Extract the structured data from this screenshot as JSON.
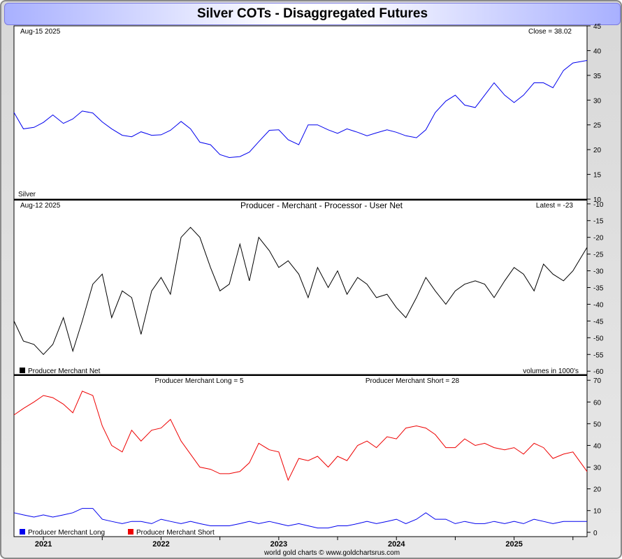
{
  "title": "Silver COTs - Disaggregated Futures",
  "footer": "world gold charts © www.goldchartsrus.com",
  "colors": {
    "price": "#0000ee",
    "net": "#000000",
    "long": "#0000ee",
    "short": "#ee0000",
    "frame_accent": "#a8b0ff"
  },
  "chart_data": [
    {
      "type": "line",
      "name": "price-panel",
      "top_left_text": "Aug-15  2025",
      "top_right_text": "Close = 38.02",
      "bottom_left_text": "Silver",
      "ylim": [
        10,
        45
      ],
      "yticks": [
        "45",
        "40",
        "35",
        "30",
        "25",
        "20",
        "15",
        "10"
      ],
      "x": [
        2020.75,
        2020.83,
        2020.92,
        2021.0,
        2021.08,
        2021.17,
        2021.25,
        2021.33,
        2021.42,
        2021.5,
        2021.58,
        2021.67,
        2021.75,
        2021.83,
        2021.92,
        2022.0,
        2022.08,
        2022.17,
        2022.25,
        2022.33,
        2022.42,
        2022.5,
        2022.58,
        2022.67,
        2022.75,
        2022.83,
        2022.92,
        2023.0,
        2023.08,
        2023.17,
        2023.25,
        2023.33,
        2023.42,
        2023.5,
        2023.58,
        2023.67,
        2023.75,
        2023.83,
        2023.92,
        2024.0,
        2024.08,
        2024.17,
        2024.25,
        2024.33,
        2024.42,
        2024.5,
        2024.58,
        2024.67,
        2024.75,
        2024.83,
        2024.92,
        2025.0,
        2025.08,
        2025.17,
        2025.25,
        2025.33,
        2025.42,
        2025.5,
        2025.62
      ],
      "series": [
        {
          "values": [
            27.5,
            24.2,
            24.5,
            25.5,
            27.0,
            25.3,
            26.2,
            27.8,
            27.4,
            25.6,
            24.2,
            22.9,
            22.6,
            23.6,
            22.9,
            23.0,
            23.9,
            25.7,
            24.2,
            21.5,
            21.0,
            19.0,
            18.4,
            18.6,
            19.5,
            21.6,
            23.9,
            24.0,
            22.0,
            21.0,
            25.0,
            25.0,
            24.0,
            23.3,
            24.2,
            23.5,
            22.8,
            23.4,
            24.0,
            23.5,
            22.8,
            22.4,
            24.0,
            27.5,
            29.8,
            31.0,
            29.0,
            28.5,
            31.0,
            33.5,
            31.0,
            29.5,
            31.0,
            33.5,
            33.5,
            32.5,
            36.0,
            37.5,
            38.02
          ]
        }
      ]
    },
    {
      "type": "line",
      "name": "net-panel",
      "title": "Producer - Merchant - Processor - User Net",
      "top_left_text": "Aug-12  2025",
      "top_right_text": "Latest = -23",
      "legend": "Producer Merchant Net",
      "note": "volumes in 1000's",
      "ylim": [
        -61,
        -9
      ],
      "yticks": [
        "-10",
        "-15",
        "-20",
        "-25",
        "-30",
        "-35",
        "-40",
        "-45",
        "-50",
        "-55",
        "-60"
      ],
      "x": [
        2020.75,
        2020.83,
        2020.92,
        2021.0,
        2021.08,
        2021.17,
        2021.25,
        2021.33,
        2021.42,
        2021.5,
        2021.58,
        2021.67,
        2021.75,
        2021.83,
        2021.92,
        2022.0,
        2022.08,
        2022.17,
        2022.25,
        2022.33,
        2022.42,
        2022.5,
        2022.58,
        2022.67,
        2022.75,
        2022.83,
        2022.92,
        2023.0,
        2023.08,
        2023.17,
        2023.25,
        2023.33,
        2023.42,
        2023.5,
        2023.58,
        2023.67,
        2023.75,
        2023.83,
        2023.92,
        2024.0,
        2024.08,
        2024.17,
        2024.25,
        2024.33,
        2024.42,
        2024.5,
        2024.58,
        2024.67,
        2024.75,
        2024.83,
        2024.92,
        2025.0,
        2025.08,
        2025.17,
        2025.25,
        2025.33,
        2025.42,
        2025.5,
        2025.62
      ],
      "series": [
        {
          "values": [
            -45,
            -51,
            -52,
            -55,
            -52,
            -44,
            -54,
            -45,
            -34,
            -31,
            -44,
            -36,
            -38,
            -49,
            -36,
            -32,
            -37,
            -20,
            -17,
            -20,
            -29,
            -36,
            -34,
            -22,
            -33,
            -20,
            -24,
            -29,
            -27,
            -31,
            -38,
            -29,
            -35,
            -30,
            -37,
            -32,
            -34,
            -38,
            -37,
            -41,
            -44,
            -38,
            -32,
            -36,
            -40,
            -36,
            -34,
            -33,
            -34,
            -38,
            -33,
            -29,
            -31,
            -36,
            -28,
            -31,
            -33,
            -30,
            -23
          ]
        }
      ]
    },
    {
      "type": "line",
      "name": "long-short-panel",
      "long_label": "Producer Merchant Long = 5",
      "short_label": "Producer Merchant Short = 28",
      "ylim": [
        -2,
        72
      ],
      "yticks": [
        "70",
        "60",
        "50",
        "40",
        "30",
        "20",
        "10",
        "0"
      ],
      "categories": [
        "2021",
        "2022",
        "2023",
        "2024",
        "2025"
      ],
      "x": [
        2020.75,
        2020.83,
        2020.92,
        2021.0,
        2021.08,
        2021.17,
        2021.25,
        2021.33,
        2021.42,
        2021.5,
        2021.58,
        2021.67,
        2021.75,
        2021.83,
        2021.92,
        2022.0,
        2022.08,
        2022.17,
        2022.25,
        2022.33,
        2022.42,
        2022.5,
        2022.58,
        2022.67,
        2022.75,
        2022.83,
        2022.92,
        2023.0,
        2023.08,
        2023.17,
        2023.25,
        2023.33,
        2023.42,
        2023.5,
        2023.58,
        2023.67,
        2023.75,
        2023.83,
        2023.92,
        2024.0,
        2024.08,
        2024.17,
        2024.25,
        2024.33,
        2024.42,
        2024.5,
        2024.58,
        2024.67,
        2024.75,
        2024.83,
        2024.92,
        2025.0,
        2025.08,
        2025.17,
        2025.25,
        2025.33,
        2025.42,
        2025.5,
        2025.62
      ],
      "series": [
        {
          "name": "Producer Merchant Long",
          "values": [
            9,
            8,
            7,
            8,
            7,
            8,
            9,
            11,
            11,
            6,
            5,
            4,
            5,
            5,
            4,
            6,
            5,
            4,
            5,
            4,
            3,
            3,
            3,
            4,
            5,
            4,
            5,
            4,
            3,
            4,
            3,
            2,
            2,
            3,
            3,
            4,
            5,
            4,
            5,
            6,
            4,
            6,
            9,
            6,
            6,
            4,
            5,
            4,
            4,
            5,
            4,
            5,
            4,
            6,
            5,
            4,
            5,
            5,
            5
          ]
        },
        {
          "name": "Producer Merchant Short",
          "values": [
            54,
            57,
            60,
            63,
            62,
            59,
            55,
            65,
            63,
            49,
            40,
            37,
            47,
            42,
            47,
            48,
            52,
            42,
            36,
            30,
            29,
            27,
            27,
            28,
            32,
            41,
            38,
            37,
            24,
            34,
            33,
            35,
            30,
            35,
            33,
            40,
            42,
            39,
            44,
            43,
            48,
            49,
            48,
            45,
            39,
            39,
            43,
            40,
            41,
            39,
            38,
            39,
            36,
            41,
            39,
            34,
            36,
            37,
            28
          ]
        }
      ]
    }
  ]
}
